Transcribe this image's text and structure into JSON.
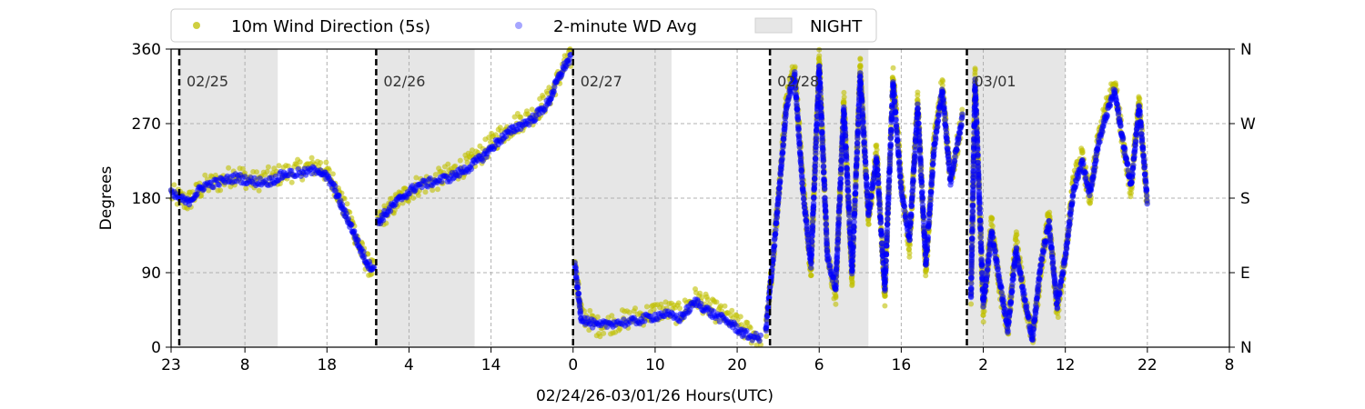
{
  "chart_data": {
    "type": "scatter",
    "xlabel": "02/24/26-03/01/26  Hours(UTC)",
    "ylabel": "Degrees",
    "x_range_hours": [
      0,
      129
    ],
    "ylim": [
      0,
      360
    ],
    "x_ticks": [
      {
        "hour": 0,
        "label": "23"
      },
      {
        "hour": 9,
        "label": "8"
      },
      {
        "hour": 19,
        "label": "18"
      },
      {
        "hour": 29,
        "label": "4"
      },
      {
        "hour": 39,
        "label": "14"
      },
      {
        "hour": 49,
        "label": "0"
      },
      {
        "hour": 59,
        "label": "10"
      },
      {
        "hour": 69,
        "label": "20"
      },
      {
        "hour": 79,
        "label": "6"
      },
      {
        "hour": 89,
        "label": "16"
      },
      {
        "hour": 99,
        "label": "2"
      },
      {
        "hour": 109,
        "label": "12"
      },
      {
        "hour": 119,
        "label": "22"
      },
      {
        "hour": 129,
        "label": "8"
      }
    ],
    "y_ticks": [
      0,
      90,
      180,
      270,
      360
    ],
    "y_right_ticks": [
      {
        "value": 0,
        "label": "N"
      },
      {
        "value": 90,
        "label": "E"
      },
      {
        "value": 180,
        "label": "S"
      },
      {
        "value": 270,
        "label": "W"
      },
      {
        "value": 360,
        "label": "N"
      }
    ],
    "day_markers": [
      {
        "hour": 1,
        "label": "02/25"
      },
      {
        "hour": 25,
        "label": "02/26"
      },
      {
        "hour": 49,
        "label": "02/27"
      },
      {
        "hour": 73,
        "label": "02/28"
      },
      {
        "hour": 97,
        "label": "03/01"
      }
    ],
    "night_spans": [
      [
        1,
        13
      ],
      [
        25,
        37
      ],
      [
        49,
        61
      ],
      [
        73,
        85
      ],
      [
        97,
        109
      ]
    ],
    "grid": true,
    "legend_position": "top-left, above plot",
    "legend": [
      {
        "label": "10m Wind Direction (5s)",
        "color": "#bfbf00",
        "kind": "point"
      },
      {
        "label": "2-minute WD Avg",
        "color": "#0000ff",
        "kind": "point"
      },
      {
        "label": "NIGHT",
        "color": "#e6e6e6",
        "kind": "patch"
      }
    ],
    "series": [
      {
        "name": "10m Wind Direction (5s)",
        "color": "#bfbf00",
        "segments": [
          {
            "x": [
              0,
              2,
              4,
              6,
              8,
              10,
              12,
              14,
              16,
              18,
              19,
              20,
              21,
              22,
              23,
              24,
              24.8
            ],
            "y": [
              185,
              175,
              195,
              200,
              210,
              200,
              205,
              210,
              215,
              220,
              210,
              195,
              170,
              150,
              120,
              100,
              90
            ]
          },
          {
            "x": [
              25.2,
              26,
              28,
              30,
              32,
              34,
              36,
              38,
              40,
              42,
              44,
              46,
              47,
              48,
              48.8
            ],
            "y": [
              150,
              160,
              180,
              195,
              200,
              210,
              220,
              235,
              255,
              270,
              280,
              300,
              320,
              340,
              350
            ]
          },
          {
            "x": [
              49.2,
              50,
              52,
              54,
              56,
              58,
              60,
              62,
              64,
              66,
              68,
              70,
              72
            ],
            "y": [
              100,
              40,
              25,
              30,
              35,
              40,
              45,
              40,
              60,
              45,
              35,
              20,
              10
            ]
          },
          {
            "x": [
              72.5,
              73.5,
              75,
              76,
              77,
              78,
              79,
              80,
              81,
              82,
              83,
              84,
              85,
              86,
              87,
              88,
              89,
              90,
              91,
              92,
              93,
              94,
              95,
              96.5
            ],
            "y": [
              20,
              120,
              300,
              340,
              200,
              90,
              350,
              110,
              60,
              300,
              80,
              340,
              150,
              240,
              60,
              330,
              200,
              120,
              300,
              90,
              250,
              320,
              200,
              280
            ]
          },
          {
            "x": [
              97.5,
              98,
              99,
              100,
              101,
              102,
              103,
              104,
              105,
              106,
              107,
              108,
              109,
              110,
              111,
              112,
              113,
              114,
              115,
              116,
              117,
              118,
              119
            ],
            "y": [
              60,
              330,
              40,
              150,
              70,
              20,
              130,
              60,
              10,
              90,
              160,
              40,
              110,
              200,
              230,
              180,
              250,
              290,
              320,
              250,
              190,
              300,
              170
            ]
          }
        ]
      },
      {
        "name": "2-minute WD Avg",
        "color": "#0000ff",
        "segments": [
          {
            "x": [
              0,
              2,
              4,
              6,
              8,
              10,
              12,
              14,
              16,
              18,
              19,
              20,
              21,
              22,
              23,
              24,
              24.8
            ],
            "y": [
              185,
              175,
              195,
              200,
              205,
              200,
              200,
              210,
              210,
              215,
              205,
              190,
              165,
              145,
              120,
              100,
              95
            ]
          },
          {
            "x": [
              25.2,
              26,
              28,
              30,
              32,
              34,
              36,
              38,
              40,
              42,
              44,
              46,
              47,
              48,
              48.8
            ],
            "y": [
              150,
              160,
              180,
              195,
              200,
              205,
              215,
              230,
              250,
              265,
              275,
              295,
              320,
              340,
              350
            ]
          },
          {
            "x": [
              49.2,
              50,
              52,
              54,
              56,
              58,
              60,
              62,
              64,
              66,
              68,
              70,
              72
            ],
            "y": [
              100,
              35,
              25,
              30,
              30,
              35,
              40,
              35,
              55,
              40,
              30,
              15,
              10
            ]
          },
          {
            "x": [
              72.5,
              73.5,
              75,
              76,
              77,
              78,
              79,
              80,
              81,
              82,
              83,
              84,
              85,
              86,
              87,
              88,
              89,
              90,
              91,
              92,
              93,
              94,
              95,
              96.5
            ],
            "y": [
              20,
              120,
              290,
              330,
              190,
              100,
              340,
              110,
              70,
              290,
              90,
              330,
              160,
              230,
              70,
              320,
              190,
              130,
              290,
              100,
              240,
              310,
              200,
              280
            ]
          },
          {
            "x": [
              97.5,
              98,
              99,
              100,
              101,
              102,
              103,
              104,
              105,
              106,
              107,
              108,
              109,
              110,
              111,
              112,
              113,
              114,
              115,
              116,
              117,
              118,
              119
            ],
            "y": [
              60,
              320,
              50,
              140,
              80,
              20,
              120,
              60,
              10,
              100,
              150,
              50,
              110,
              190,
              225,
              185,
              245,
              280,
              310,
              250,
              195,
              290,
              175
            ]
          }
        ]
      }
    ]
  }
}
